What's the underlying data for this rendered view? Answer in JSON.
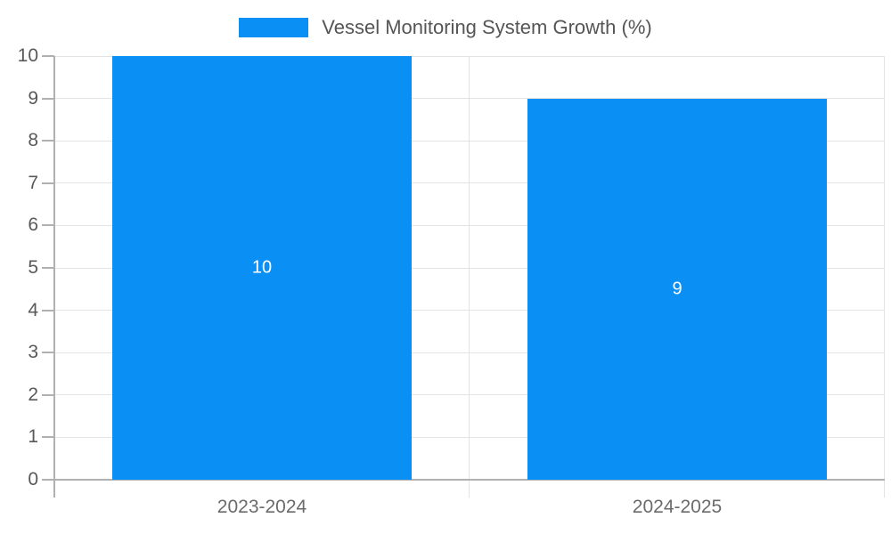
{
  "chart_data": {
    "type": "bar",
    "title": "",
    "legend": {
      "label": "Vessel Monitoring System Growth (%)",
      "position": "top"
    },
    "categories": [
      "2023-2024",
      "2024-2025"
    ],
    "series": [
      {
        "name": "Vessel Monitoring System Growth (%)",
        "values": [
          10,
          9
        ]
      }
    ],
    "data_labels": [
      "10",
      "9"
    ],
    "xlabel": "",
    "ylabel": "",
    "ylim": [
      0,
      10
    ],
    "yticks": [
      0,
      1,
      2,
      3,
      4,
      5,
      6,
      7,
      8,
      9,
      10
    ],
    "grid": true,
    "legend_position": "top"
  },
  "colors": {
    "bar": "#0a8ff5",
    "gridline": "#e3e3e3",
    "axis": "#b0b0b0",
    "y_tick_label": "#595959",
    "x_tick_label": "#6b6b6b",
    "data_label": "#ffffff",
    "legend_text": "#555555",
    "background": "#ffffff"
  }
}
